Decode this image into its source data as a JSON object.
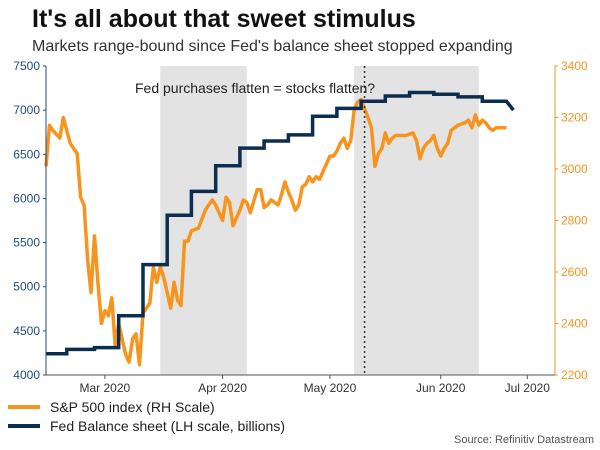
{
  "title": "It's all about that sweet stimulus",
  "subtitle": "Markets range-bound since Fed's balance sheet stopped expanding",
  "source": "Source: Refinitiv Datastream",
  "colors": {
    "sp500": "#f7941d",
    "fed": "#0b2d4f",
    "shade": "#e3e3e3",
    "left_axis": "#1f4e79",
    "right_axis": "#f7941d"
  },
  "chart_data": {
    "type": "line",
    "annotation": "Fed purchases flatten = stocks flatten?",
    "annotation_line_date": "2020-05-21",
    "x_range": [
      "2020-02-19",
      "2020-07-15"
    ],
    "x_ticks": [
      {
        "date": "2020-03-07",
        "label": "Mar 2020"
      },
      {
        "date": "2020-04-10",
        "label": "Apr 2020"
      },
      {
        "date": "2020-05-11",
        "label": "May 2020"
      },
      {
        "date": "2020-06-12",
        "label": "Jun 2020"
      },
      {
        "date": "2020-07-07",
        "label": "Jul 2020"
      }
    ],
    "shaded_ranges": [
      [
        "2020-03-23",
        "2020-04-17"
      ],
      [
        "2020-05-18",
        "2020-06-23"
      ]
    ],
    "y_left": {
      "min": 4000,
      "max": 7500,
      "ticks": [
        4000,
        4500,
        5000,
        5500,
        6000,
        6500,
        7000,
        7500
      ]
    },
    "y_right": {
      "min": 2200,
      "max": 3400,
      "ticks": [
        2200,
        2400,
        2600,
        2800,
        3000,
        3200,
        3400
      ]
    },
    "legend_position": "bottom-left",
    "grid": false,
    "series": [
      {
        "name": "S&P 500 index (RH Scale)",
        "axis": "right",
        "points": [
          [
            "2020-02-19",
            3010
          ],
          [
            "2020-02-20",
            3170
          ],
          [
            "2020-02-21",
            3150
          ],
          [
            "2020-02-23",
            3120
          ],
          [
            "2020-02-24",
            3200
          ],
          [
            "2020-02-26",
            3100
          ],
          [
            "2020-02-28",
            3060
          ],
          [
            "2020-02-29",
            2890
          ],
          [
            "2020-03-01",
            2860
          ],
          [
            "2020-03-02",
            2650
          ],
          [
            "2020-03-03",
            2520
          ],
          [
            "2020-03-04",
            2740
          ],
          [
            "2020-03-05",
            2560
          ],
          [
            "2020-03-06",
            2400
          ],
          [
            "2020-03-07",
            2450
          ],
          [
            "2020-03-08",
            2430
          ],
          [
            "2020-03-09",
            2500
          ],
          [
            "2020-03-10",
            2310
          ],
          [
            "2020-03-11",
            2400
          ],
          [
            "2020-03-13",
            2280
          ],
          [
            "2020-03-14",
            2250
          ],
          [
            "2020-03-15",
            2340
          ],
          [
            "2020-03-16",
            2360
          ],
          [
            "2020-03-17",
            2240
          ],
          [
            "2020-03-18",
            2440
          ],
          [
            "2020-03-20",
            2480
          ],
          [
            "2020-03-21",
            2620
          ],
          [
            "2020-03-22",
            2560
          ],
          [
            "2020-03-23",
            2620
          ],
          [
            "2020-03-24",
            2580
          ],
          [
            "2020-03-25",
            2520
          ],
          [
            "2020-03-26",
            2460
          ],
          [
            "2020-03-27",
            2560
          ],
          [
            "2020-03-28",
            2490
          ],
          [
            "2020-03-29",
            2470
          ],
          [
            "2020-03-30",
            2720
          ],
          [
            "2020-03-31",
            2720
          ],
          [
            "2020-04-01",
            2760
          ],
          [
            "2020-04-03",
            2770
          ],
          [
            "2020-04-05",
            2840
          ],
          [
            "2020-04-06",
            2860
          ],
          [
            "2020-04-07",
            2880
          ],
          [
            "2020-04-08",
            2860
          ],
          [
            "2020-04-09",
            2830
          ],
          [
            "2020-04-10",
            2800
          ],
          [
            "2020-04-11",
            2890
          ],
          [
            "2020-04-12",
            2870
          ],
          [
            "2020-04-13",
            2780
          ],
          [
            "2020-04-14",
            2810
          ],
          [
            "2020-04-15",
            2840
          ],
          [
            "2020-04-16",
            2880
          ],
          [
            "2020-04-17",
            2870
          ],
          [
            "2020-04-18",
            2830
          ],
          [
            "2020-04-20",
            2920
          ],
          [
            "2020-04-21",
            2920
          ],
          [
            "2020-04-22",
            2850
          ],
          [
            "2020-04-23",
            2860
          ],
          [
            "2020-04-24",
            2880
          ],
          [
            "2020-04-26",
            2860
          ],
          [
            "2020-04-27",
            2900
          ],
          [
            "2020-04-28",
            2950
          ],
          [
            "2020-04-29",
            2910
          ],
          [
            "2020-04-30",
            2880
          ],
          [
            "2020-05-01",
            2840
          ],
          [
            "2020-05-02",
            2860
          ],
          [
            "2020-05-03",
            2930
          ],
          [
            "2020-05-04",
            2940
          ],
          [
            "2020-05-05",
            2970
          ],
          [
            "2020-05-06",
            2950
          ],
          [
            "2020-05-07",
            2970
          ],
          [
            "2020-05-08",
            2960
          ],
          [
            "2020-05-09",
            2990
          ],
          [
            "2020-05-11",
            3050
          ],
          [
            "2020-05-12",
            3050
          ],
          [
            "2020-05-13",
            3070
          ],
          [
            "2020-05-14",
            3100
          ],
          [
            "2020-05-15",
            3120
          ],
          [
            "2020-05-16",
            3080
          ],
          [
            "2020-05-17",
            3110
          ],
          [
            "2020-05-18",
            3230
          ],
          [
            "2020-05-19",
            3260
          ],
          [
            "2020-05-20",
            3270
          ],
          [
            "2020-05-22",
            3200
          ],
          [
            "2020-05-23",
            3160
          ],
          [
            "2020-05-24",
            3010
          ],
          [
            "2020-05-25",
            3060
          ],
          [
            "2020-05-26",
            3080
          ],
          [
            "2020-05-27",
            3140
          ],
          [
            "2020-05-28",
            3100
          ],
          [
            "2020-05-29",
            3120
          ],
          [
            "2020-05-30",
            3130
          ],
          [
            "2020-06-02",
            3130
          ],
          [
            "2020-06-04",
            3140
          ],
          [
            "2020-06-05",
            3110
          ],
          [
            "2020-06-06",
            3040
          ],
          [
            "2020-06-07",
            3080
          ],
          [
            "2020-06-08",
            3100
          ],
          [
            "2020-06-09",
            3110
          ],
          [
            "2020-06-10",
            3130
          ],
          [
            "2020-06-11",
            3080
          ],
          [
            "2020-06-12",
            3050
          ],
          [
            "2020-06-13",
            3080
          ],
          [
            "2020-06-14",
            3100
          ],
          [
            "2020-06-15",
            3150
          ],
          [
            "2020-06-16",
            3160
          ],
          [
            "2020-06-17",
            3170
          ],
          [
            "2020-06-19",
            3180
          ],
          [
            "2020-06-20",
            3190
          ],
          [
            "2020-06-21",
            3160
          ],
          [
            "2020-06-22",
            3210
          ],
          [
            "2020-06-23",
            3170
          ],
          [
            "2020-06-24",
            3190
          ],
          [
            "2020-06-25",
            3180
          ],
          [
            "2020-06-26",
            3160
          ],
          [
            "2020-06-27",
            3150
          ],
          [
            "2020-06-28",
            3160
          ],
          [
            "2020-07-01",
            3160
          ]
        ]
      },
      {
        "name": "Fed Balance sheet (LH scale, billions)",
        "axis": "left",
        "points": [
          [
            "2020-02-19",
            4240
          ],
          [
            "2020-02-25",
            4240
          ],
          [
            "2020-02-25",
            4290
          ],
          [
            "2020-03-04",
            4290
          ],
          [
            "2020-03-04",
            4310
          ],
          [
            "2020-03-11",
            4310
          ],
          [
            "2020-03-11",
            4670
          ],
          [
            "2020-03-18",
            4670
          ],
          [
            "2020-03-18",
            5250
          ],
          [
            "2020-03-25",
            5250
          ],
          [
            "2020-03-25",
            5810
          ],
          [
            "2020-04-01",
            5810
          ],
          [
            "2020-04-01",
            6080
          ],
          [
            "2020-04-08",
            6080
          ],
          [
            "2020-04-08",
            6370
          ],
          [
            "2020-04-15",
            6370
          ],
          [
            "2020-04-15",
            6570
          ],
          [
            "2020-04-22",
            6570
          ],
          [
            "2020-04-22",
            6650
          ],
          [
            "2020-04-29",
            6650
          ],
          [
            "2020-04-29",
            6720
          ],
          [
            "2020-05-06",
            6720
          ],
          [
            "2020-05-06",
            6930
          ],
          [
            "2020-05-13",
            6930
          ],
          [
            "2020-05-13",
            7020
          ],
          [
            "2020-05-20",
            7020
          ],
          [
            "2020-05-20",
            7100
          ],
          [
            "2020-05-27",
            7100
          ],
          [
            "2020-05-27",
            7160
          ],
          [
            "2020-06-03",
            7160
          ],
          [
            "2020-06-03",
            7200
          ],
          [
            "2020-06-10",
            7200
          ],
          [
            "2020-06-10",
            7180
          ],
          [
            "2020-06-17",
            7180
          ],
          [
            "2020-06-17",
            7150
          ],
          [
            "2020-06-24",
            7150
          ],
          [
            "2020-06-24",
            7100
          ],
          [
            "2020-07-01",
            7100
          ],
          [
            "2020-07-03",
            7000
          ]
        ]
      }
    ]
  }
}
